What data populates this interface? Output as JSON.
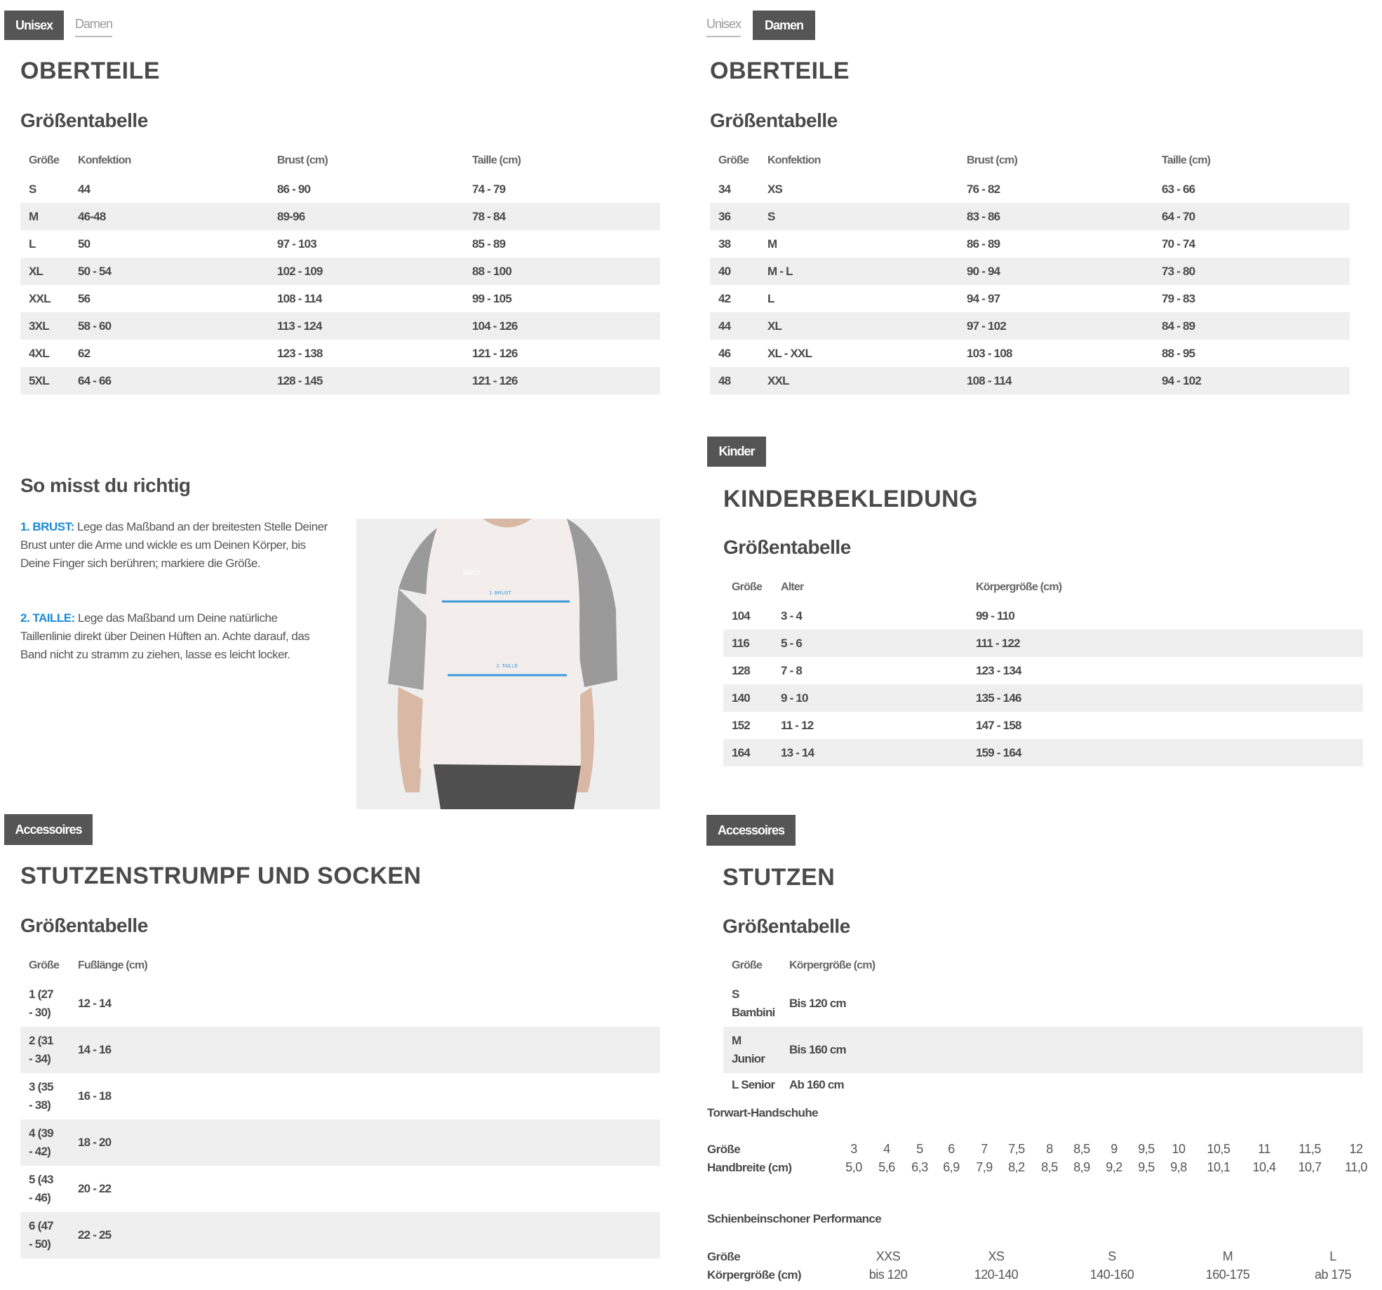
{
  "left": {
    "tabs": [
      {
        "label": "Unisex",
        "active": true
      },
      {
        "label": "Damen",
        "active": false
      }
    ],
    "title": "OBERTEILE",
    "subtitle": "Größentabelle",
    "table": {
      "headers": [
        "Größe",
        "Konfektion",
        "Brust (cm)",
        "Taille (cm)"
      ],
      "rows": [
        [
          "S",
          "44",
          "86 - 90",
          "74 - 79"
        ],
        [
          "M",
          "46-48",
          "89-96",
          "78 - 84"
        ],
        [
          "L",
          "50",
          "97 - 103",
          "85 - 89"
        ],
        [
          "XL",
          "50 - 54",
          "102 - 109",
          "88 - 100"
        ],
        [
          "XXL",
          "56",
          "108 - 114",
          "99 - 105"
        ],
        [
          "3XL",
          "58 - 60",
          "113 - 124",
          "104 - 126"
        ],
        [
          "4XL",
          "62",
          "123 - 138",
          "121 - 126"
        ],
        [
          "5XL",
          "64 - 66",
          "128 - 145",
          "121 - 126"
        ]
      ]
    },
    "measure": {
      "title": "So misst du richtig",
      "brust_label": "1. BRUST:",
      "brust_text": " Lege das Maßband an der breitesten Stelle Deiner Brust unter die Arme und wickle es um Deinen Körper, bis Deine Finger sich berühren; markiere die Größe.",
      "taille_label": "2. TAILLE:",
      "taille_text": " Lege das Maßband um Deine natürliche Taillenlinie direkt über Deinen Hüften an. Achte darauf, das Band nicht zu stramm zu ziehen, lasse es leicht locker.",
      "image_brust": "1. BRUST",
      "image_taille": "2. TAILLE",
      "image_logo": "JAKO"
    },
    "accessoires": {
      "badge": "Accessoires",
      "title": "STUTZENSTRUMPF UND SOCKEN",
      "subtitle": "Größentabelle",
      "table": {
        "headers": [
          "Größe",
          "Fußlänge (cm)"
        ],
        "rows": [
          [
            "1 (27\n- 30)",
            "12 - 14"
          ],
          [
            "2 (31\n- 34)",
            "14 - 16"
          ],
          [
            "3 (35\n- 38)",
            "16 - 18"
          ],
          [
            "4 (39\n- 42)",
            "18 - 20"
          ],
          [
            "5 (43\n- 46)",
            "20 - 22"
          ],
          [
            "6 (47\n- 50)",
            "22 - 25"
          ]
        ]
      }
    }
  },
  "right": {
    "tabs": [
      {
        "label": "Unisex",
        "active": false
      },
      {
        "label": "Damen",
        "active": true
      }
    ],
    "title": "OBERTEILE",
    "subtitle": "Größentabelle",
    "table": {
      "headers": [
        "Größe",
        "Konfektion",
        "Brust (cm)",
        "Taille (cm)"
      ],
      "rows": [
        [
          "34",
          "XS",
          "76 - 82",
          "63 - 66"
        ],
        [
          "36",
          "S",
          "83 - 86",
          "64 - 70"
        ],
        [
          "38",
          "M",
          "86 - 89",
          "70 - 74"
        ],
        [
          "40",
          "M - L",
          "90 - 94",
          "73 - 80"
        ],
        [
          "42",
          "L",
          "94 - 97",
          "79 - 83"
        ],
        [
          "44",
          "XL",
          "97 - 102",
          "84 - 89"
        ],
        [
          "46",
          "XL - XXL",
          "103 - 108",
          "88 - 95"
        ],
        [
          "48",
          "XXL",
          "108 - 114",
          "94 - 102"
        ]
      ]
    },
    "kinder": {
      "badge": "Kinder",
      "title": "KINDERBEKLEIDUNG",
      "subtitle": "Größentabelle",
      "table": {
        "headers": [
          "Größe",
          "Alter",
          "Körpergröße (cm)"
        ],
        "rows": [
          [
            "104",
            "3 - 4",
            "99 - 110"
          ],
          [
            "116",
            "5 - 6",
            "111 - 122"
          ],
          [
            "128",
            "7 - 8",
            "123 - 134"
          ],
          [
            "140",
            "9 - 10",
            "135 - 146"
          ],
          [
            "152",
            "11 - 12",
            "147 - 158"
          ],
          [
            "164",
            "13 - 14",
            "159 - 164"
          ]
        ]
      }
    },
    "accessoires": {
      "badge": "Accessoires",
      "title": "STUTZEN",
      "subtitle": "Größentabelle",
      "table": {
        "headers": [
          "Größe",
          "Körpergröße (cm)"
        ],
        "rows": [
          [
            "S\nBambini",
            "Bis 120 cm"
          ],
          [
            "M\nJunior",
            "Bis 160 cm"
          ],
          [
            "L Senior",
            "Ab 160 cm"
          ]
        ]
      }
    },
    "gloves": {
      "title": "Torwart-Handschuhe",
      "size_label": "Größe",
      "width_label": "Handbreite (cm)",
      "sizes": [
        "3",
        "4",
        "5",
        "6",
        "7",
        "7,5",
        "8",
        "8,5",
        "9",
        "9,5",
        "10",
        "10,5",
        "11",
        "11,5",
        "12"
      ],
      "widths": [
        "5,0",
        "5,6",
        "6,3",
        "6,9",
        "7,9",
        "8,2",
        "8,5",
        "8,9",
        "9,2",
        "9,5",
        "9,8",
        "10,1",
        "10,4",
        "10,7",
        "11,0"
      ]
    },
    "shin": {
      "title": "Schienbeinschoner Performance",
      "size_label": "Größe",
      "height_label": "Körpergröße (cm)",
      "sizes": [
        "XXS",
        "XS",
        "S",
        "M",
        "L"
      ],
      "heights": [
        "bis 120",
        "120-140",
        "140-160",
        "160-175",
        "ab 175"
      ]
    }
  },
  "colors": {
    "text": "#4a4a4a",
    "tab_active": "#555555",
    "row_shade": "#efefef",
    "accent_blue": "#1a8ad4"
  }
}
